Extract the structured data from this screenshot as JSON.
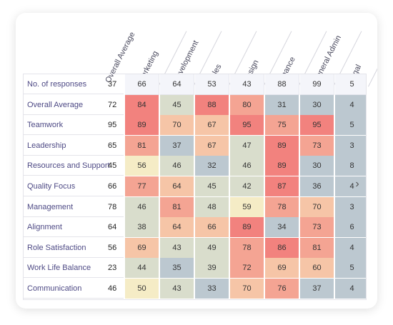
{
  "columns": [
    "Overall Average",
    "Marketing",
    "Development",
    "Sales",
    "Design",
    "Finance",
    "General Admin",
    "Legal"
  ],
  "rows": [
    {
      "label": "No. of responses",
      "value": "37",
      "cells": [
        "66",
        "64",
        "53",
        "43",
        "88",
        "99",
        "5"
      ]
    },
    {
      "label": "Overall Average",
      "value": "72",
      "cells": [
        "84",
        "45",
        "88",
        "80",
        "31",
        "30",
        "4"
      ]
    },
    {
      "label": "Teamwork",
      "value": "95",
      "cells": [
        "89",
        "70",
        "67",
        "95",
        "75",
        "95",
        "5"
      ]
    },
    {
      "label": "Leadership",
      "value": "65",
      "cells": [
        "81",
        "37",
        "67",
        "47",
        "89",
        "73",
        "3"
      ]
    },
    {
      "label": "Resources and Support",
      "value": "45",
      "cells": [
        "56",
        "46",
        "32",
        "46",
        "89",
        "30",
        "8"
      ]
    },
    {
      "label": "Quality Focus",
      "value": "66",
      "cells": [
        "77",
        "64",
        "45",
        "42",
        "87",
        "36",
        "4"
      ]
    },
    {
      "label": "Management",
      "value": "78",
      "cells": [
        "46",
        "81",
        "48",
        "59",
        "78",
        "70",
        "3"
      ]
    },
    {
      "label": "Alignment",
      "value": "64",
      "cells": [
        "38",
        "64",
        "66",
        "89",
        "34",
        "73",
        "6"
      ]
    },
    {
      "label": "Role Satisfaction",
      "value": "56",
      "cells": [
        "69",
        "43",
        "49",
        "78",
        "86",
        "81",
        "4"
      ]
    },
    {
      "label": "Work Life Balance",
      "value": "23",
      "cells": [
        "44",
        "35",
        "39",
        "72",
        "69",
        "60",
        "5"
      ]
    },
    {
      "label": "Communication",
      "value": "46",
      "cells": [
        "50",
        "43",
        "33",
        "70",
        "76",
        "37",
        "4"
      ]
    }
  ],
  "nav": {
    "next_icon": "chevron-right-icon",
    "next_glyph": "›"
  },
  "colors": {
    "header_row": "#f4f5fa",
    "scale": [
      "#bcc8d0",
      "#d9ddcc",
      "#f5ecc6",
      "#f6c5a7",
      "#f4a493",
      "#f2827e"
    ]
  }
}
